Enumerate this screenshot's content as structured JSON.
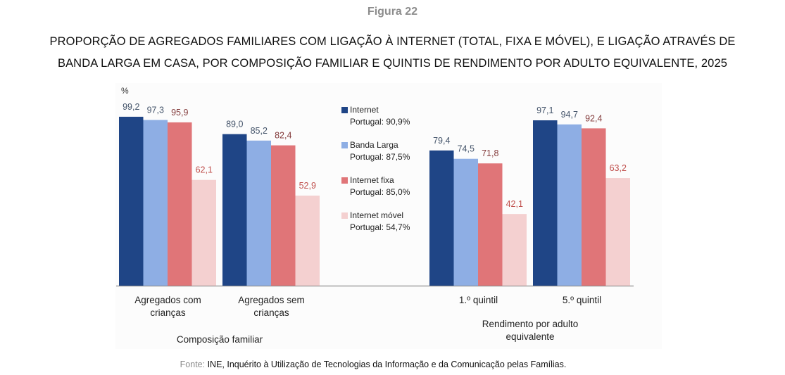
{
  "figure_label": "Figura 22",
  "title_line1": "PROPORÇÃO DE AGREGADOS FAMILIARES COM LIGAÇÃO À INTERNET (TOTAL, FIXA E MÓVEL), E LIGAÇÃO ATRAVÉS DE",
  "title_line2": "BANDA LARGA EM CASA, POR COMPOSIÇÃO FAMILIAR E QUINTIS DE RENDIMENTO POR ADULTO EQUIVALENTE, 2025",
  "source": {
    "label": "Fonte:",
    "text": " INE, Inquérito à Utilização de Tecnologias da Informação e da Comunicação pelas Famílias."
  },
  "chart_data": {
    "type": "bar",
    "title": "PROPORÇÃO DE AGREGADOS FAMILIARES COM LIGAÇÃO À INTERNET (TOTAL, FIXA E MÓVEL), E LIGAÇÃO ATRAVÉS DE BANDA LARGA EM CASA, POR COMPOSIÇÃO FAMILIAR E QUINTIS DE RENDIMENTO POR ADULTO EQUIVALENTE, 2025",
    "ylabel": "%",
    "xlabel": "",
    "ylim": [
      0,
      100
    ],
    "grid": false,
    "legend_position": "center",
    "categories": [
      {
        "label_line1": "Agregados com",
        "label_line2": "crianças"
      },
      {
        "label_line1": "Agregados sem",
        "label_line2": "crianças"
      },
      {
        "label_line1": "1.º quintil",
        "label_line2": ""
      },
      {
        "label_line1": "5.º quintil",
        "label_line2": ""
      }
    ],
    "category_groups": [
      {
        "label_line1": "Composição familiar",
        "label_line2": ""
      },
      {
        "label_line1": "Rendimento por adulto",
        "label_line2": "equivalente"
      }
    ],
    "series": [
      {
        "name": "Internet",
        "legend_sub": "Portugal: 90,9%",
        "color": "#1f4586",
        "label_color": "#44546a",
        "values": [
          99.2,
          89.0,
          79.4,
          97.1
        ],
        "labels": [
          "99,2",
          "89,0",
          "79,4",
          "97,1"
        ]
      },
      {
        "name": "Banda Larga",
        "legend_sub": "Portugal: 87,5%",
        "color": "#8eaee4",
        "label_color": "#44546a",
        "values": [
          97.3,
          85.2,
          74.5,
          94.7
        ],
        "labels": [
          "97,3",
          "85,2",
          "74,5",
          "94,7"
        ]
      },
      {
        "name": "Internet fixa",
        "legend_sub": "Portugal: 85,0%",
        "color": "#e07578",
        "label_color": "#843c3c",
        "values": [
          95.9,
          82.4,
          71.8,
          92.4
        ],
        "labels": [
          "95,9",
          "82,4",
          "71,8",
          "92,4"
        ]
      },
      {
        "name": "Internet móvel",
        "legend_sub": "Portugal: 54,7%",
        "color": "#f4d0d0",
        "label_color": "#c0504d",
        "values": [
          62.1,
          52.9,
          42.1,
          63.2
        ],
        "labels": [
          "62,1",
          "52,9",
          "42,1",
          "63,2"
        ]
      }
    ]
  }
}
